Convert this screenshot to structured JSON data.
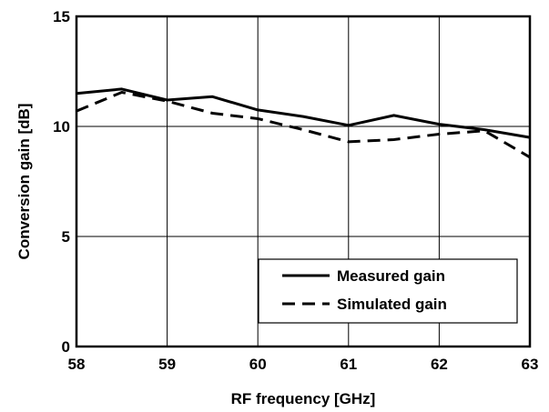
{
  "chart_data": {
    "type": "line",
    "title": "",
    "xlabel": "RF frequency [GHz]",
    "ylabel": "Conversion gain [dB]",
    "xlim": [
      58,
      63
    ],
    "ylim": [
      0,
      15
    ],
    "xticks": [
      58,
      59,
      60,
      61,
      62,
      63
    ],
    "yticks": [
      0,
      5,
      10,
      15
    ],
    "grid": true,
    "legend_position": "bottom-right",
    "series": [
      {
        "name": "Measured gain",
        "style": "solid",
        "x": [
          58,
          58.5,
          59,
          59.5,
          60,
          60.5,
          61,
          61.5,
          62,
          62.5,
          63
        ],
        "y": [
          11.5,
          11.7,
          11.2,
          11.35,
          10.75,
          10.45,
          10.05,
          10.5,
          10.1,
          9.85,
          9.5
        ]
      },
      {
        "name": "Simulated gain",
        "style": "dashed",
        "x": [
          58,
          58.5,
          59,
          59.5,
          60,
          60.5,
          61,
          61.5,
          62,
          62.5,
          63
        ],
        "y": [
          10.7,
          11.55,
          11.15,
          10.6,
          10.35,
          9.85,
          9.3,
          9.4,
          9.65,
          9.8,
          8.6
        ]
      }
    ]
  }
}
